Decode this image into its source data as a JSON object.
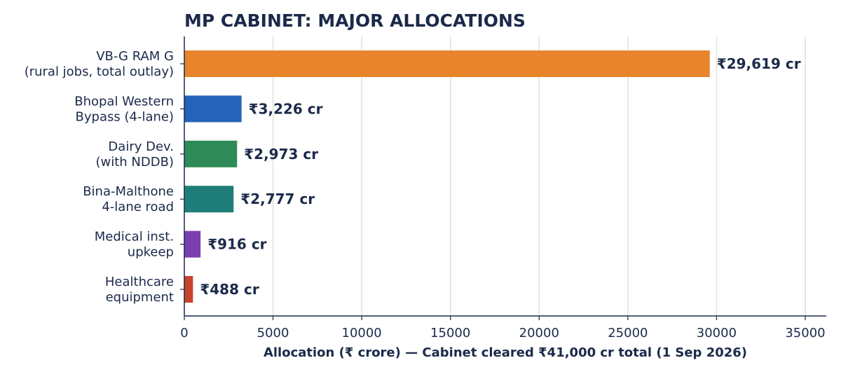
{
  "chart_data": {
    "type": "bar",
    "orientation": "horizontal",
    "title": "MP CABINET: MAJOR ALLOCATIONS",
    "xlabel": "Allocation (₹ crore)  —  Cabinet cleared ₹41,000 cr total (1 Sep 2026)",
    "ylabel": "",
    "xlim": [
      0,
      36000
    ],
    "x_ticks": [
      0,
      5000,
      10000,
      15000,
      20000,
      25000,
      30000,
      35000
    ],
    "x_tick_labels": [
      "0",
      "5000",
      "10000",
      "15000",
      "20000",
      "25000",
      "30000",
      "35000"
    ],
    "grid": "vertical",
    "legend": "none",
    "categories": [
      [
        "VB-G RAM G",
        "(rural jobs, total outlay)"
      ],
      [
        "Bhopal Western",
        "Bypass (4-lane)"
      ],
      [
        "Dairy Dev.",
        "(with NDDB)"
      ],
      [
        "Bina-Malthone",
        "4-lane road"
      ],
      [
        "Medical inst.",
        "upkeep"
      ],
      [
        "Healthcare",
        "equipment"
      ]
    ],
    "values": [
      29619,
      3226,
      2973,
      2777,
      916,
      488
    ],
    "data_labels": [
      "₹29,619 cr",
      "₹3,226 cr",
      "₹2,973 cr",
      "₹2,777 cr",
      "₹916 cr",
      "₹488 cr"
    ],
    "colors": [
      "#e8852c",
      "#2563b8",
      "#2e8b57",
      "#1f7f78",
      "#7b3fb0",
      "#c8432e"
    ]
  },
  "style": {
    "text_color": "#1b2a4a",
    "grid_color": "#e2e0d4",
    "axis_color": "#1b2a4a"
  }
}
